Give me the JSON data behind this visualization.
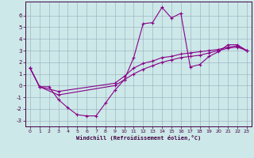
{
  "xlabel": "Windchill (Refroidissement éolien,°C)",
  "bg_color": "#cce8e8",
  "line_color": "#880088",
  "grid_color": "#99aabb",
  "xlim": [
    -0.5,
    23.5
  ],
  "ylim": [
    -3.5,
    7.2
  ],
  "xticks": [
    0,
    1,
    2,
    3,
    4,
    5,
    6,
    7,
    8,
    9,
    10,
    11,
    12,
    13,
    14,
    15,
    16,
    17,
    18,
    19,
    20,
    21,
    22,
    23
  ],
  "yticks": [
    -3,
    -2,
    -1,
    0,
    1,
    2,
    3,
    4,
    5,
    6
  ],
  "series1": [
    [
      0,
      1.5
    ],
    [
      1,
      -0.1
    ],
    [
      2,
      -0.1
    ],
    [
      3,
      -1.2
    ],
    [
      4,
      -1.9
    ],
    [
      5,
      -2.5
    ],
    [
      6,
      -2.6
    ],
    [
      7,
      -2.6
    ],
    [
      8,
      -1.5
    ],
    [
      9,
      -0.4
    ],
    [
      10,
      0.5
    ],
    [
      11,
      2.4
    ],
    [
      12,
      5.3
    ],
    [
      13,
      5.4
    ],
    [
      14,
      6.7
    ],
    [
      15,
      5.8
    ],
    [
      16,
      6.2
    ],
    [
      17,
      1.6
    ],
    [
      18,
      1.8
    ],
    [
      19,
      2.5
    ],
    [
      20,
      2.9
    ],
    [
      21,
      3.5
    ],
    [
      22,
      3.5
    ],
    [
      23,
      3.0
    ]
  ],
  "series2": [
    [
      0,
      1.5
    ],
    [
      1,
      -0.1
    ],
    [
      3,
      -0.8
    ],
    [
      9,
      0.0
    ],
    [
      10,
      0.5
    ],
    [
      11,
      1.0
    ],
    [
      12,
      1.4
    ],
    [
      13,
      1.7
    ],
    [
      14,
      2.0
    ],
    [
      15,
      2.2
    ],
    [
      16,
      2.4
    ],
    [
      17,
      2.5
    ],
    [
      18,
      2.6
    ],
    [
      19,
      2.8
    ],
    [
      20,
      3.0
    ],
    [
      21,
      3.2
    ],
    [
      22,
      3.3
    ],
    [
      23,
      3.0
    ]
  ],
  "series3": [
    [
      0,
      1.5
    ],
    [
      1,
      -0.1
    ],
    [
      3,
      -0.5
    ],
    [
      9,
      0.2
    ],
    [
      10,
      0.8
    ],
    [
      11,
      1.5
    ],
    [
      12,
      1.9
    ],
    [
      13,
      2.1
    ],
    [
      14,
      2.4
    ],
    [
      15,
      2.5
    ],
    [
      16,
      2.7
    ],
    [
      17,
      2.8
    ],
    [
      18,
      2.9
    ],
    [
      19,
      3.0
    ],
    [
      20,
      3.1
    ],
    [
      21,
      3.3
    ],
    [
      22,
      3.4
    ],
    [
      23,
      3.0
    ]
  ]
}
